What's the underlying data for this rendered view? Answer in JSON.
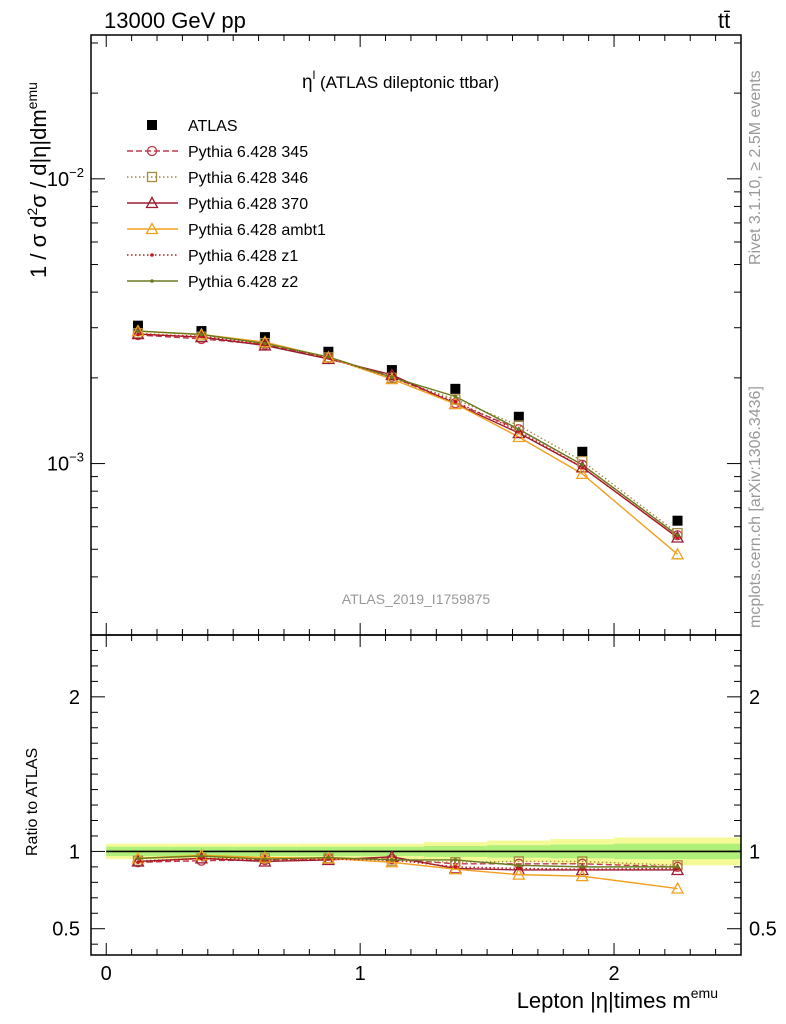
{
  "header": {
    "left": "13000 GeV pp",
    "right": "tt̄"
  },
  "side_text": {
    "rivet": "Rivet 3.1.10, ≥ 2.5M events",
    "mcplots": "mcplots.cern.ch [arXiv:1306.3436]"
  },
  "chart_data": [
    {
      "type": "line",
      "panel": "main",
      "title_main": "η",
      "title_sup": "l",
      "title_rest": " (ATLAS dileptonic ttbar)",
      "watermark": "ATLAS_2019_I1759875",
      "ylabel": "1 / σ d²σ / d|η|dm^emu",
      "ylabel_parts": {
        "a": "1 / σ d",
        "sup1": "2",
        "b": "σ / d|η|dm",
        "sup2": "emu"
      },
      "yscale": "log",
      "ylim": [
        0.00025,
        0.032
      ],
      "xlim": [
        -0.06,
        2.5
      ],
      "y_ticks": [
        {
          "value": 0.01,
          "base": "10",
          "exp": "−2"
        },
        {
          "value": 0.001,
          "base": "10",
          "exp": "−3"
        }
      ],
      "legend_position": "top-left",
      "x": [
        0.125,
        0.375,
        0.625,
        0.875,
        1.125,
        1.375,
        1.625,
        1.875,
        2.25
      ],
      "series": [
        {
          "name": "ATLAS",
          "style": "data",
          "color": "#000000",
          "marker": "square",
          "values": [
            0.00305,
            0.00292,
            0.00278,
            0.00247,
            0.00213,
            0.00183,
            0.00146,
            0.0011,
            0.00063
          ]
        },
        {
          "name": "Pythia 6.428 345",
          "style": "dashed",
          "color": "#c0394b",
          "marker": "circle",
          "values": [
            0.00283,
            0.00274,
            0.00262,
            0.00235,
            0.00202,
            0.00163,
            0.00132,
            0.00099,
            0.00056
          ]
        },
        {
          "name": "Pythia 6.428 346",
          "style": "dotted",
          "color": "#a58a43",
          "marker": "square-open",
          "values": [
            0.00287,
            0.00279,
            0.00265,
            0.00236,
            0.002,
            0.00168,
            0.00136,
            0.00102,
            0.00057
          ]
        },
        {
          "name": "Pythia 6.428 370",
          "style": "solid",
          "color": "#9b1b30",
          "marker": "triangle",
          "values": [
            0.00285,
            0.00278,
            0.0026,
            0.00233,
            0.00205,
            0.00162,
            0.00128,
            0.00097,
            0.00055
          ]
        },
        {
          "name": "Pythia 6.428 ambt1",
          "style": "solid",
          "color": "#f0a01e",
          "marker": "triangle",
          "values": [
            0.00292,
            0.00284,
            0.00267,
            0.00236,
            0.00198,
            0.00162,
            0.00124,
            0.00092,
            0.00048
          ]
        },
        {
          "name": "Pythia 6.428 z1",
          "style": "dotted",
          "color": "#c01818",
          "marker": "dot",
          "values": [
            0.00284,
            0.0028,
            0.00262,
            0.00235,
            0.00201,
            0.00165,
            0.0013,
            0.00097,
            0.00055
          ]
        },
        {
          "name": "Pythia 6.428 z2",
          "style": "solid",
          "color": "#6b7a1e",
          "marker": "dot",
          "values": [
            0.00292,
            0.00284,
            0.00264,
            0.00237,
            0.00201,
            0.00172,
            0.00132,
            0.00099,
            0.00056
          ]
        }
      ]
    },
    {
      "type": "line",
      "panel": "ratio",
      "ylabel": "Ratio to ATLAS",
      "xlabel": "Lepton |η|times m",
      "xlabel_sup": "emu",
      "ylim": [
        0.33,
        2.4
      ],
      "xlim": [
        -0.06,
        2.5
      ],
      "x_ticks": [
        {
          "value": 0,
          "label": "0"
        },
        {
          "value": 1,
          "label": "1"
        },
        {
          "value": 2,
          "label": "2"
        }
      ],
      "y_ticks": [
        {
          "value": 0.5,
          "label": "0.5"
        },
        {
          "value": 1,
          "label": "1"
        },
        {
          "value": 2,
          "label": "2"
        }
      ],
      "band": {
        "x_edges": [
          0,
          0.25,
          0.5,
          0.75,
          1.0,
          1.25,
          1.5,
          1.75,
          2.0,
          2.5
        ],
        "inner": [
          0.03,
          0.03,
          0.03,
          0.03,
          0.03,
          0.035,
          0.04,
          0.045,
          0.05
        ],
        "outer": [
          0.05,
          0.05,
          0.05,
          0.05,
          0.05,
          0.06,
          0.07,
          0.08,
          0.09
        ],
        "inner_color": "#aef07a",
        "outer_color": "#f4fb96"
      },
      "x": [
        0.125,
        0.375,
        0.625,
        0.875,
        1.125,
        1.375,
        1.625,
        1.875,
        2.25
      ],
      "series": [
        {
          "name": "Pythia 6.428 345",
          "values": [
            0.93,
            0.94,
            0.945,
            0.955,
            0.95,
            0.92,
            0.92,
            0.92,
            0.9
          ]
        },
        {
          "name": "Pythia 6.428 346",
          "values": [
            0.94,
            0.955,
            0.955,
            0.955,
            0.94,
            0.93,
            0.935,
            0.935,
            0.91
          ]
        },
        {
          "name": "Pythia 6.428 370",
          "values": [
            0.935,
            0.955,
            0.935,
            0.945,
            0.965,
            0.89,
            0.88,
            0.88,
            0.88
          ]
        },
        {
          "name": "Pythia 6.428 ambt1",
          "values": [
            0.955,
            0.975,
            0.96,
            0.955,
            0.93,
            0.885,
            0.85,
            0.84,
            0.76
          ]
        },
        {
          "name": "Pythia 6.428 z1",
          "values": [
            0.93,
            0.955,
            0.945,
            0.95,
            0.945,
            0.9,
            0.89,
            0.885,
            0.89
          ]
        },
        {
          "name": "Pythia 6.428 z2",
          "values": [
            0.955,
            0.97,
            0.95,
            0.96,
            0.945,
            0.945,
            0.91,
            0.9,
            0.9
          ]
        }
      ]
    }
  ]
}
